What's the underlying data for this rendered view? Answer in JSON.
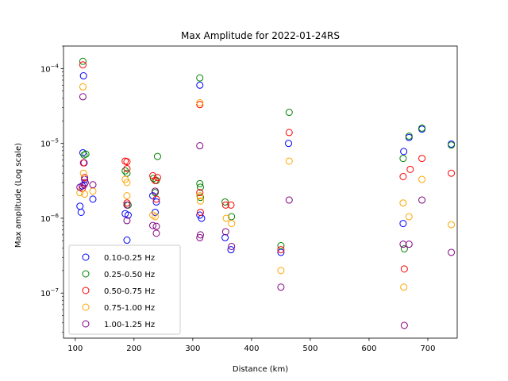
{
  "chart_data": {
    "type": "scatter",
    "title": "Max Amplitude for 2022-01-24RS",
    "xlabel": "Distance (km)",
    "ylabel": "Max amplitude (Log scale)",
    "xlim": [
      80,
      750
    ],
    "ylim": [
      2.5e-08,
      0.0002
    ],
    "yscale": "log",
    "x_ticks": [
      100,
      200,
      300,
      400,
      500,
      600,
      700
    ],
    "y_ticks": [
      {
        "value": 1e-07,
        "base": "10",
        "exp": "−7"
      },
      {
        "value": 1e-06,
        "base": "10",
        "exp": "−6"
      },
      {
        "value": 1e-05,
        "base": "10",
        "exp": "−5"
      },
      {
        "value": 0.0001,
        "base": "10",
        "exp": "−4"
      }
    ],
    "grid": false,
    "legend": "lower-left",
    "marker": "hollow-circle",
    "series": [
      {
        "name": "0.10-0.25 Hz",
        "color": "#0000ff",
        "points": [
          [
            108,
            1.45e-06
          ],
          [
            110,
            1.2e-06
          ],
          [
            112,
            2.7e-06
          ],
          [
            113,
            7.5e-06
          ],
          [
            114,
            8e-05
          ],
          [
            115,
            5.5e-06
          ],
          [
            116,
            3.3e-06
          ],
          [
            130,
            1.8e-06
          ],
          [
            185,
            1.15e-06
          ],
          [
            188,
            5.1e-07
          ],
          [
            190,
            1.1e-06
          ],
          [
            232,
            2e-06
          ],
          [
            236,
            1.2e-06
          ],
          [
            238,
            1.65e-06
          ],
          [
            312,
            6e-05
          ],
          [
            312,
            1.1e-06
          ],
          [
            315,
            1e-06
          ],
          [
            355,
            5.5e-07
          ],
          [
            365,
            3.8e-07
          ],
          [
            450,
            3.5e-07
          ],
          [
            463,
            1e-05
          ],
          [
            658,
            8.5e-07
          ],
          [
            659,
            7.8e-06
          ],
          [
            668,
            1.2e-05
          ],
          [
            690,
            1.55e-05
          ],
          [
            740,
            9.8e-06
          ]
        ]
      },
      {
        "name": "0.25-0.50 Hz",
        "color": "#008000",
        "points": [
          [
            113,
            0.000125
          ],
          [
            115,
            7e-06
          ],
          [
            118,
            7.2e-06
          ],
          [
            185,
            4.3e-06
          ],
          [
            188,
            4e-06
          ],
          [
            190,
            1.5e-06
          ],
          [
            233,
            3.4e-06
          ],
          [
            236,
            2.2e-06
          ],
          [
            238,
            3.2e-06
          ],
          [
            240,
            6.7e-06
          ],
          [
            312,
            7.5e-05
          ],
          [
            312,
            2.9e-06
          ],
          [
            313,
            2.6e-06
          ],
          [
            313,
            1.9e-06
          ],
          [
            355,
            1.65e-06
          ],
          [
            366,
            1.05e-06
          ],
          [
            450,
            4.3e-07
          ],
          [
            464,
            2.6e-05
          ],
          [
            658,
            6.3e-06
          ],
          [
            660,
            3.9e-07
          ],
          [
            668,
            1.25e-05
          ],
          [
            690,
            1.6e-05
          ],
          [
            740,
            9.5e-06
          ]
        ]
      },
      {
        "name": "0.50-0.75 Hz",
        "color": "#ff0000",
        "points": [
          [
            113,
            0.000112
          ],
          [
            114,
            5.5e-06
          ],
          [
            116,
            3.5e-06
          ],
          [
            112,
            2.5e-06
          ],
          [
            185,
            5.8e-06
          ],
          [
            188,
            5.7e-06
          ],
          [
            188,
            4.6e-06
          ],
          [
            188,
            1.6e-06
          ],
          [
            232,
            3.7e-06
          ],
          [
            236,
            3.2e-06
          ],
          [
            240,
            3.5e-06
          ],
          [
            238,
            1.8e-06
          ],
          [
            312,
            3.3e-05
          ],
          [
            312,
            2.2e-06
          ],
          [
            313,
            1.2e-06
          ],
          [
            356,
            1.5e-06
          ],
          [
            365,
            1.5e-06
          ],
          [
            450,
            3.8e-07
          ],
          [
            464,
            1.4e-05
          ],
          [
            658,
            3.6e-06
          ],
          [
            660,
            2.1e-07
          ],
          [
            670,
            4.5e-06
          ],
          [
            690,
            6.3e-06
          ],
          [
            740,
            4e-06
          ]
        ]
      },
      {
        "name": "0.75-1.00 Hz",
        "color": "#ffa500",
        "points": [
          [
            108,
            2.2e-06
          ],
          [
            113,
            5.7e-05
          ],
          [
            114,
            4e-06
          ],
          [
            116,
            2.1e-06
          ],
          [
            130,
            2.3e-06
          ],
          [
            185,
            3.3e-06
          ],
          [
            188,
            2e-06
          ],
          [
            188,
            3e-06
          ],
          [
            232,
            1.1e-06
          ],
          [
            236,
            1.05e-06
          ],
          [
            312,
            3.5e-05
          ],
          [
            312,
            2e-06
          ],
          [
            313,
            1.7e-06
          ],
          [
            357,
            1e-06
          ],
          [
            366,
            8.5e-07
          ],
          [
            450,
            2e-07
          ],
          [
            464,
            5.8e-06
          ],
          [
            658,
            1.6e-06
          ],
          [
            659,
            1.2e-07
          ],
          [
            668,
            1.05e-06
          ],
          [
            690,
            3.3e-06
          ],
          [
            740,
            8.2e-07
          ]
        ]
      },
      {
        "name": "1.00-1.25 Hz",
        "color": "#800080",
        "points": [
          [
            108,
            2.6e-06
          ],
          [
            113,
            4.2e-05
          ],
          [
            115,
            2.8e-06
          ],
          [
            117,
            3e-06
          ],
          [
            130,
            2.8e-06
          ],
          [
            188,
            9.3e-07
          ],
          [
            188,
            1.5e-06
          ],
          [
            232,
            8e-07
          ],
          [
            236,
            2.3e-06
          ],
          [
            238,
            6.3e-07
          ],
          [
            238,
            7.8e-07
          ],
          [
            312,
            9.3e-06
          ],
          [
            312,
            5.5e-07
          ],
          [
            313,
            6e-07
          ],
          [
            356,
            6.6e-07
          ],
          [
            366,
            4.2e-07
          ],
          [
            450,
            1.2e-07
          ],
          [
            464,
            1.75e-06
          ],
          [
            658,
            4.5e-07
          ],
          [
            660,
            3.7e-08
          ],
          [
            668,
            4.5e-07
          ],
          [
            690,
            1.75e-06
          ],
          [
            740,
            3.5e-07
          ]
        ]
      }
    ]
  }
}
